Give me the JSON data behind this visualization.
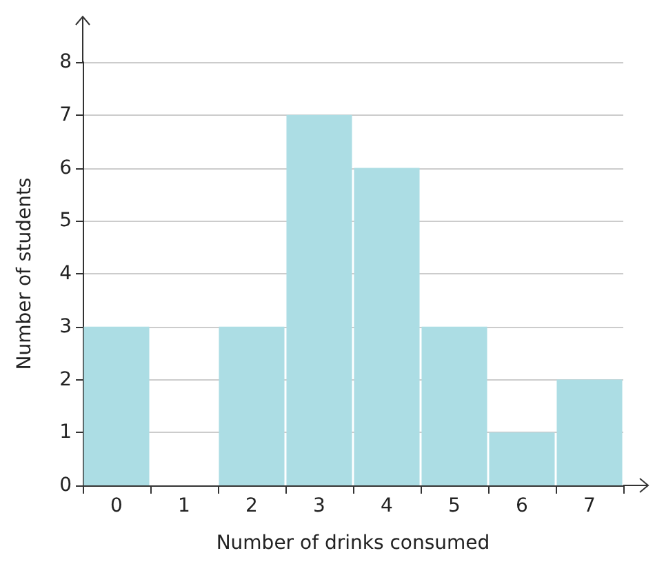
{
  "chart_data": {
    "type": "bar",
    "xlabel": "Number of drinks consumed",
    "ylabel": "Number of students",
    "categories": [
      "0",
      "1",
      "2",
      "3",
      "4",
      "5",
      "6",
      "7"
    ],
    "values": [
      3,
      0,
      3,
      7,
      6,
      3,
      1,
      2
    ],
    "color": "#acdde4",
    "ylim": [
      0,
      8
    ],
    "yticks": [
      0,
      1,
      2,
      3,
      4,
      5,
      6,
      7,
      8
    ],
    "grid": "y"
  }
}
